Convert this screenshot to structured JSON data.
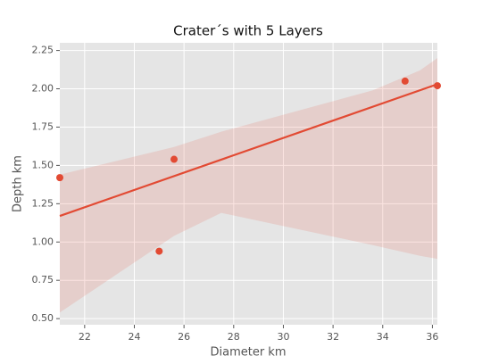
{
  "chart_data": {
    "type": "scatter",
    "title": "Crater´s with 5 Layers",
    "x_label": "Diameter km",
    "y_label": "Depth km",
    "color": "#e24a33",
    "x": [
      21.0,
      25.0,
      25.6,
      34.9,
      36.2
    ],
    "values": [
      1.42,
      0.94,
      1.54,
      2.05,
      2.02
    ],
    "fit": {
      "x": [
        21.0,
        36.2
      ],
      "values": [
        1.17,
        2.03
      ]
    },
    "band": {
      "x": [
        21.0,
        25.6,
        27.5,
        33.6,
        35.5,
        36.2
      ],
      "lower": [
        0.54,
        1.04,
        1.19,
        0.98,
        0.91,
        0.89
      ],
      "upper": [
        1.44,
        1.62,
        1.72,
        1.99,
        2.12,
        2.2
      ]
    },
    "xlim": [
      21.0,
      36.2
    ],
    "ylim": [
      0.46,
      2.3
    ],
    "xticks": [
      22,
      24,
      26,
      28,
      30,
      32,
      34,
      36
    ],
    "yticks": [
      {
        "value": 0.5,
        "label": "0.50"
      },
      0.75,
      {
        "value": 1.0,
        "label": "1.00"
      },
      1.25,
      {
        "value": 1.5,
        "label": "1.50"
      },
      1.75,
      {
        "value": 2.0,
        "label": "2.00"
      },
      2.25
    ],
    "grid": true
  }
}
